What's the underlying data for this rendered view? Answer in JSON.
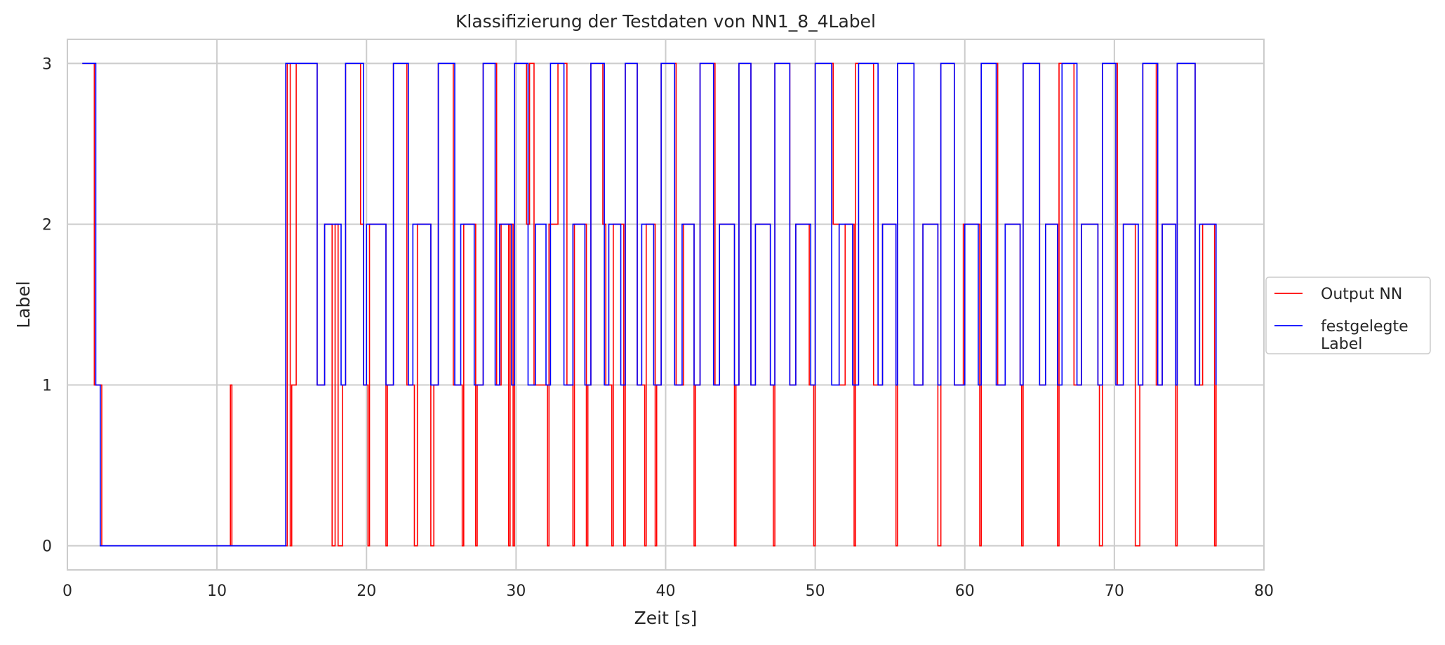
{
  "chart_data": {
    "type": "line",
    "title": "Klassifizierung der Testdaten von NN1_8_4Label",
    "xlabel": "Zeit [s]",
    "ylabel": "Label",
    "xlim": [
      0,
      80
    ],
    "ylim": [
      -0.15,
      3.15
    ],
    "xticks": [
      0,
      10,
      20,
      30,
      40,
      50,
      60,
      70,
      80
    ],
    "yticks": [
      0,
      1,
      2,
      3
    ],
    "grid": true,
    "legend_position": "right-outside",
    "step": "post",
    "series": [
      {
        "name": "Output NN",
        "color": "#ff0000",
        "points": [
          [
            1.0,
            3
          ],
          [
            1.8,
            1
          ],
          [
            2.3,
            0
          ],
          [
            10.9,
            1
          ],
          [
            11.0,
            0
          ],
          [
            14.7,
            3
          ],
          [
            14.9,
            0
          ],
          [
            15.0,
            1
          ],
          [
            15.3,
            3
          ],
          [
            16.7,
            1
          ],
          [
            17.2,
            2
          ],
          [
            17.7,
            0
          ],
          [
            17.9,
            2
          ],
          [
            18.1,
            0
          ],
          [
            18.4,
            1
          ],
          [
            18.6,
            3
          ],
          [
            19.6,
            2
          ],
          [
            19.8,
            1
          ],
          [
            20.1,
            0
          ],
          [
            20.2,
            2
          ],
          [
            21.3,
            0
          ],
          [
            21.4,
            1
          ],
          [
            21.8,
            3
          ],
          [
            22.7,
            1
          ],
          [
            23.2,
            0
          ],
          [
            23.4,
            2
          ],
          [
            24.3,
            0
          ],
          [
            24.5,
            1
          ],
          [
            24.8,
            3
          ],
          [
            25.8,
            1
          ],
          [
            26.4,
            0
          ],
          [
            26.5,
            2
          ],
          [
            27.3,
            0
          ],
          [
            27.4,
            1
          ],
          [
            27.8,
            3
          ],
          [
            28.7,
            1
          ],
          [
            29.0,
            2
          ],
          [
            29.5,
            0
          ],
          [
            29.6,
            2
          ],
          [
            29.8,
            0
          ],
          [
            29.9,
            3
          ],
          [
            30.7,
            2
          ],
          [
            30.9,
            3
          ],
          [
            31.2,
            1
          ],
          [
            32.1,
            0
          ],
          [
            32.2,
            2
          ],
          [
            32.8,
            3
          ],
          [
            33.4,
            1
          ],
          [
            33.8,
            0
          ],
          [
            33.9,
            2
          ],
          [
            34.7,
            0
          ],
          [
            34.8,
            1
          ],
          [
            35.0,
            3
          ],
          [
            35.8,
            2
          ],
          [
            36.0,
            1
          ],
          [
            36.4,
            0
          ],
          [
            36.5,
            2
          ],
          [
            37.2,
            0
          ],
          [
            37.3,
            3
          ],
          [
            38.1,
            1
          ],
          [
            38.6,
            0
          ],
          [
            38.7,
            2
          ],
          [
            39.3,
            0
          ],
          [
            39.4,
            1
          ],
          [
            39.7,
            3
          ],
          [
            40.7,
            1
          ],
          [
            41.2,
            2
          ],
          [
            41.9,
            0
          ],
          [
            42.0,
            1
          ],
          [
            42.3,
            3
          ],
          [
            43.3,
            1
          ],
          [
            43.6,
            2
          ],
          [
            44.6,
            0
          ],
          [
            44.7,
            1
          ],
          [
            44.9,
            3
          ],
          [
            45.7,
            1
          ],
          [
            46.0,
            2
          ],
          [
            47.0,
            1
          ],
          [
            47.2,
            0
          ],
          [
            47.3,
            3
          ],
          [
            48.3,
            1
          ],
          [
            48.7,
            2
          ],
          [
            49.6,
            1
          ],
          [
            49.9,
            0
          ],
          [
            50.0,
            3
          ],
          [
            51.2,
            2
          ],
          [
            51.6,
            1
          ],
          [
            52.0,
            2
          ],
          [
            52.6,
            0
          ],
          [
            52.7,
            3
          ],
          [
            53.9,
            1
          ],
          [
            54.5,
            2
          ],
          [
            55.4,
            0
          ],
          [
            55.5,
            3
          ],
          [
            56.6,
            1
          ],
          [
            57.2,
            2
          ],
          [
            58.2,
            0
          ],
          [
            58.4,
            3
          ],
          [
            59.3,
            1
          ],
          [
            59.9,
            2
          ],
          [
            61.0,
            0
          ],
          [
            61.1,
            3
          ],
          [
            62.2,
            1
          ],
          [
            62.7,
            2
          ],
          [
            63.7,
            1
          ],
          [
            63.8,
            0
          ],
          [
            63.9,
            3
          ],
          [
            65.0,
            1
          ],
          [
            65.4,
            2
          ],
          [
            66.2,
            0
          ],
          [
            66.3,
            3
          ],
          [
            67.3,
            1
          ],
          [
            67.8,
            2
          ],
          [
            68.9,
            1
          ],
          [
            69.0,
            0
          ],
          [
            69.2,
            3
          ],
          [
            70.2,
            1
          ],
          [
            70.6,
            2
          ],
          [
            71.4,
            0
          ],
          [
            71.7,
            1
          ],
          [
            71.9,
            3
          ],
          [
            72.8,
            1
          ],
          [
            73.2,
            2
          ],
          [
            74.1,
            0
          ],
          [
            74.2,
            3
          ],
          [
            75.4,
            1
          ],
          [
            75.9,
            2
          ],
          [
            76.7,
            0
          ],
          [
            76.8,
            1
          ]
        ]
      },
      {
        "name": "festgelegte\nLabel",
        "color": "#0000ff",
        "points": [
          [
            1.0,
            3
          ],
          [
            1.9,
            1
          ],
          [
            2.2,
            0
          ],
          [
            14.6,
            3
          ],
          [
            16.7,
            1
          ],
          [
            17.2,
            2
          ],
          [
            18.3,
            1
          ],
          [
            18.6,
            3
          ],
          [
            19.8,
            1
          ],
          [
            20.0,
            2
          ],
          [
            21.3,
            1
          ],
          [
            21.8,
            3
          ],
          [
            22.8,
            1
          ],
          [
            23.1,
            2
          ],
          [
            24.3,
            1
          ],
          [
            24.8,
            3
          ],
          [
            25.9,
            1
          ],
          [
            26.3,
            2
          ],
          [
            27.2,
            1
          ],
          [
            27.8,
            3
          ],
          [
            28.6,
            1
          ],
          [
            28.9,
            2
          ],
          [
            29.7,
            1
          ],
          [
            29.9,
            3
          ],
          [
            30.8,
            1
          ],
          [
            31.3,
            2
          ],
          [
            32.0,
            1
          ],
          [
            32.3,
            3
          ],
          [
            33.2,
            1
          ],
          [
            33.8,
            2
          ],
          [
            34.6,
            1
          ],
          [
            35.0,
            3
          ],
          [
            35.9,
            1
          ],
          [
            36.2,
            2
          ],
          [
            37.0,
            1
          ],
          [
            37.3,
            3
          ],
          [
            38.1,
            1
          ],
          [
            38.4,
            2
          ],
          [
            39.2,
            1
          ],
          [
            39.7,
            3
          ],
          [
            40.6,
            1
          ],
          [
            41.1,
            2
          ],
          [
            41.9,
            1
          ],
          [
            42.3,
            3
          ],
          [
            43.2,
            1
          ],
          [
            43.6,
            2
          ],
          [
            44.6,
            1
          ],
          [
            44.9,
            3
          ],
          [
            45.7,
            1
          ],
          [
            46.0,
            2
          ],
          [
            47.0,
            1
          ],
          [
            47.3,
            3
          ],
          [
            48.3,
            1
          ],
          [
            48.7,
            2
          ],
          [
            49.7,
            1
          ],
          [
            50.0,
            3
          ],
          [
            51.1,
            1
          ],
          [
            51.6,
            2
          ],
          [
            52.5,
            1
          ],
          [
            52.9,
            3
          ],
          [
            54.2,
            1
          ],
          [
            54.5,
            2
          ],
          [
            55.4,
            1
          ],
          [
            55.5,
            3
          ],
          [
            56.6,
            1
          ],
          [
            57.2,
            2
          ],
          [
            58.2,
            1
          ],
          [
            58.4,
            3
          ],
          [
            59.3,
            1
          ],
          [
            60.0,
            2
          ],
          [
            60.9,
            1
          ],
          [
            61.1,
            3
          ],
          [
            62.1,
            1
          ],
          [
            62.7,
            2
          ],
          [
            63.7,
            1
          ],
          [
            63.9,
            3
          ],
          [
            65.0,
            1
          ],
          [
            65.4,
            2
          ],
          [
            66.2,
            1
          ],
          [
            66.5,
            3
          ],
          [
            67.5,
            1
          ],
          [
            67.8,
            2
          ],
          [
            68.9,
            1
          ],
          [
            69.2,
            3
          ],
          [
            70.1,
            1
          ],
          [
            70.6,
            2
          ],
          [
            71.6,
            1
          ],
          [
            71.9,
            3
          ],
          [
            72.9,
            1
          ],
          [
            73.2,
            2
          ],
          [
            74.1,
            1
          ],
          [
            74.2,
            3
          ],
          [
            75.4,
            1
          ],
          [
            75.7,
            2
          ],
          [
            76.8,
            1
          ]
        ]
      }
    ]
  }
}
